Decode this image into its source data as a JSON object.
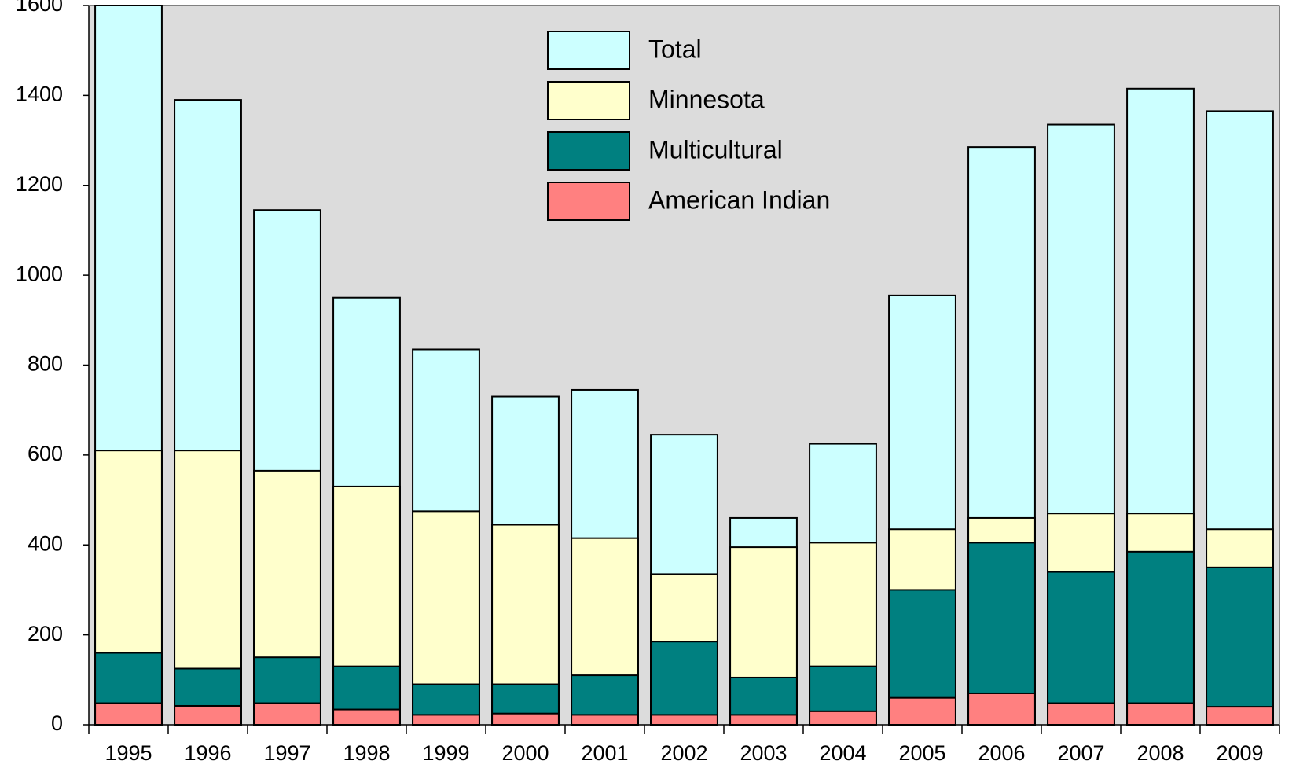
{
  "chart_data": {
    "type": "bar",
    "overlap": true,
    "categories": [
      "1995",
      "1996",
      "1997",
      "1998",
      "1999",
      "2000",
      "2001",
      "2002",
      "2003",
      "2004",
      "2005",
      "2006",
      "2007",
      "2008",
      "2009"
    ],
    "series": [
      {
        "name": "Total",
        "color": "#ccffff",
        "values": [
          1600,
          1390,
          1145,
          950,
          835,
          730,
          745,
          645,
          460,
          625,
          955,
          1285,
          1335,
          1415,
          1365
        ]
      },
      {
        "name": "Minnesota",
        "color": "#ffffcc",
        "values": [
          610,
          610,
          565,
          530,
          475,
          445,
          415,
          335,
          395,
          405,
          435,
          460,
          470,
          470,
          435
        ]
      },
      {
        "name": "Multicultural",
        "color": "#008080",
        "values": [
          160,
          125,
          150,
          130,
          90,
          90,
          110,
          185,
          105,
          130,
          300,
          405,
          340,
          385,
          350
        ]
      },
      {
        "name": "American Indian",
        "color": "#ff8080",
        "values": [
          48,
          42,
          48,
          34,
          22,
          25,
          22,
          22,
          22,
          30,
          60,
          70,
          48,
          48,
          40
        ]
      }
    ],
    "ylim": [
      0,
      1600
    ],
    "yticks": [
      0,
      200,
      400,
      600,
      800,
      1000,
      1200,
      1400,
      1600
    ],
    "background": "#dcdcdc",
    "legend": "top-center"
  }
}
